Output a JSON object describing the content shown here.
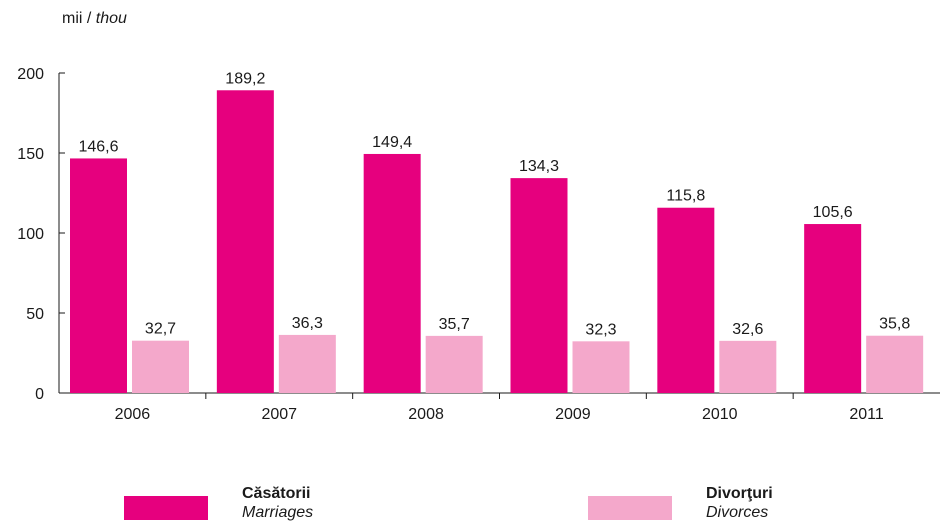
{
  "unit": {
    "ro": "mii",
    "sep": "/",
    "en": "thou"
  },
  "colors": {
    "marriages": "#e6007e",
    "divorces": "#f4a8cb",
    "axis": "#1a1a1a"
  },
  "legend": [
    {
      "ro": "Căsătorii",
      "en": "Marriages"
    },
    {
      "ro": "Divorţuri",
      "en": "Divorces"
    }
  ],
  "chart_data": {
    "type": "bar",
    "categories": [
      "2006",
      "2007",
      "2008",
      "2009",
      "2010",
      "2011"
    ],
    "series": [
      {
        "name": "Căsătorii / Marriages",
        "values": [
          146.6,
          189.2,
          149.4,
          134.3,
          115.8,
          105.6
        ],
        "labels": [
          "146,6",
          "189,2",
          "149,4",
          "134,3",
          "115,8",
          "105,6"
        ]
      },
      {
        "name": "Divorţuri / Divorces",
        "values": [
          32.7,
          36.3,
          35.7,
          32.3,
          32.6,
          35.8
        ],
        "labels": [
          "32,7",
          "36,3",
          "35,7",
          "32,3",
          "32,6",
          "35,8"
        ]
      }
    ],
    "yticks": [
      "0",
      "50",
      "100",
      "150",
      "200"
    ],
    "ylim": [
      0,
      200
    ],
    "grid": false,
    "legend_position": "bottom"
  }
}
